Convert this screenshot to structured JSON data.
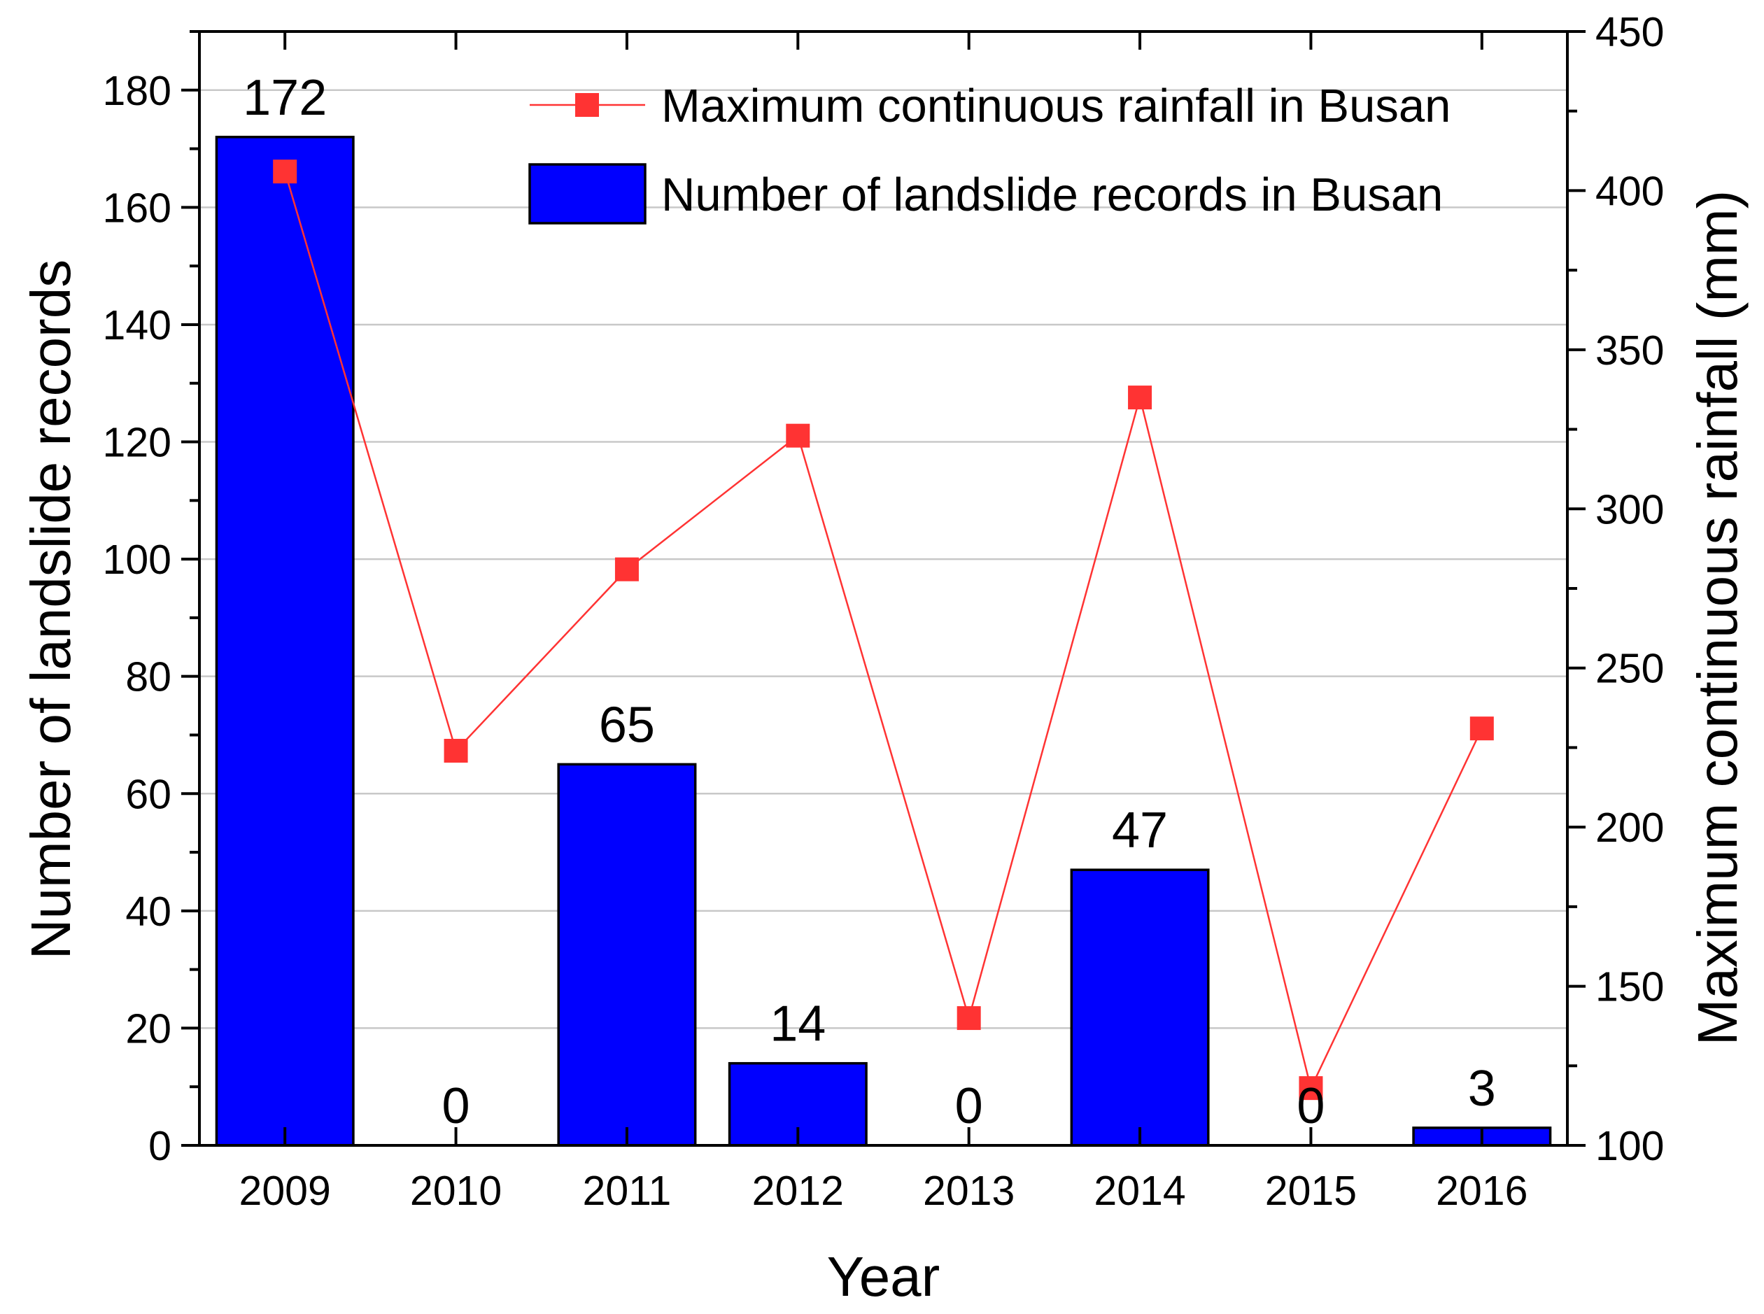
{
  "chart_data": {
    "type": "bar",
    "categories": [
      "2009",
      "2010",
      "2011",
      "2012",
      "2013",
      "2014",
      "2015",
      "2016"
    ],
    "xlabel": "Year",
    "series": [
      {
        "name": "Number of landslide records in Busan",
        "type": "bar",
        "axis": "left",
        "values": [
          172,
          0,
          65,
          14,
          0,
          47,
          0,
          3
        ],
        "labels": [
          "172",
          "0",
          "65",
          "14",
          "0",
          "47",
          "0",
          "3"
        ],
        "color": "#0000ff"
      },
      {
        "name": "Maximum continuous rainfall in Busan",
        "type": "line",
        "axis": "right",
        "values": [
          406,
          224,
          281,
          323,
          140,
          335,
          118,
          231
        ],
        "color": "#ff3333"
      }
    ],
    "y_left": {
      "label": "Number of landslide records",
      "ylim": [
        0,
        190
      ],
      "ticks": [
        0,
        20,
        40,
        60,
        80,
        100,
        120,
        140,
        160,
        180
      ]
    },
    "y_right": {
      "label": "Maximum continuous rainfall (mm)",
      "ylim": [
        100,
        450
      ],
      "ticks": [
        100,
        150,
        200,
        250,
        300,
        350,
        400,
        450
      ]
    },
    "grid": true,
    "legend_position": "top-right",
    "legend_order": [
      1,
      0
    ]
  }
}
